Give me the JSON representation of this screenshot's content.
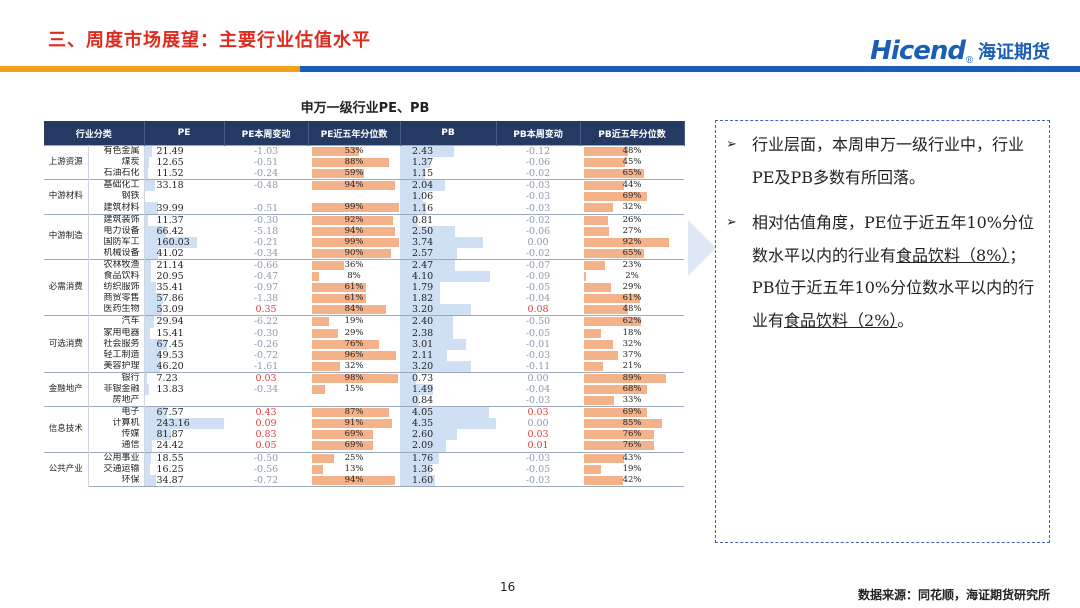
{
  "header": {
    "title": "三、周度市场展望：主要行业估值水平"
  },
  "logo": {
    "english": "Hicend",
    "registered": "®",
    "chinese": "海证期货"
  },
  "colors": {
    "title_red": "#e02a20",
    "brand_blue": "#1a5fb4",
    "stripe_orange": "#f4a11b",
    "stripe_blue": "#1a5fb4",
    "table_header": "#243a63",
    "bar_orange": "#f4b28a",
    "pe_bar_blue": "#cfe0f4"
  },
  "table": {
    "caption": "申万一级行业PE、PB",
    "columns": [
      "行业分类",
      "",
      "PE",
      "PE本周变动",
      "PE近五年分位数",
      "PB",
      "PB本周变动",
      "PB近五年分位数"
    ],
    "groups": [
      {
        "name": "上游资源",
        "rows": [
          {
            "industry": "有色金属",
            "pe": "21.49",
            "pe_chg": "-1.03",
            "pe_pct": "53%",
            "pe_pct_val": 53,
            "pb": "2.43",
            "pb_chg": "-0.12",
            "pb_pct": "48%",
            "pb_pct_val": 48
          },
          {
            "industry": "煤炭",
            "pe": "12.65",
            "pe_chg": "-0.51",
            "pe_pct": "88%",
            "pe_pct_val": 88,
            "pb": "1.37",
            "pb_chg": "-0.06",
            "pb_pct": "45%",
            "pb_pct_val": 45
          },
          {
            "industry": "石油石化",
            "pe": "11.52",
            "pe_chg": "-0.24",
            "pe_pct": "59%",
            "pe_pct_val": 59,
            "pb": "1.15",
            "pb_chg": "-0.02",
            "pb_pct": "65%",
            "pb_pct_val": 65
          }
        ]
      },
      {
        "name": "中游材料",
        "rows": [
          {
            "industry": "基础化工",
            "pe": "33.18",
            "pe_chg": "-0.48",
            "pe_pct": "94%",
            "pe_pct_val": 94,
            "pb": "2.04",
            "pb_chg": "-0.03",
            "pb_pct": "44%",
            "pb_pct_val": 44
          },
          {
            "industry": "钢铁",
            "pe": "",
            "pe_chg": "",
            "pe_pct": "",
            "pe_pct_val": 0,
            "pb": "1.06",
            "pb_chg": "-0.03",
            "pb_pct": "69%",
            "pb_pct_val": 69
          },
          {
            "industry": "建筑材料",
            "pe": "39.99",
            "pe_chg": "-0.51",
            "pe_pct": "99%",
            "pe_pct_val": 99,
            "pb": "1.16",
            "pb_chg": "-0.03",
            "pb_pct": "32%",
            "pb_pct_val": 32
          }
        ]
      },
      {
        "name": "中游制造",
        "rows": [
          {
            "industry": "建筑装饰",
            "pe": "11.37",
            "pe_chg": "-0.30",
            "pe_pct": "92%",
            "pe_pct_val": 92,
            "pb": "0.81",
            "pb_chg": "-0.02",
            "pb_pct": "26%",
            "pb_pct_val": 26
          },
          {
            "industry": "电力设备",
            "pe": "66.42",
            "pe_chg": "-5.18",
            "pe_pct": "94%",
            "pe_pct_val": 94,
            "pb": "2.50",
            "pb_chg": "-0.06",
            "pb_pct": "27%",
            "pb_pct_val": 27
          },
          {
            "industry": "国防军工",
            "pe": "160.03",
            "pe_chg": "-0.21",
            "pe_pct": "99%",
            "pe_pct_val": 99,
            "pb": "3.74",
            "pb_chg": "0.00",
            "pb_pct": "92%",
            "pb_pct_val": 92
          },
          {
            "industry": "机械设备",
            "pe": "41.02",
            "pe_chg": "-0.34",
            "pe_pct": "90%",
            "pe_pct_val": 90,
            "pb": "2.57",
            "pb_chg": "-0.02",
            "pb_pct": "65%",
            "pb_pct_val": 65
          }
        ]
      },
      {
        "name": "必需消费",
        "rows": [
          {
            "industry": "农林牧渔",
            "pe": "21.14",
            "pe_chg": "-0.66",
            "pe_pct": "36%",
            "pe_pct_val": 36,
            "pb": "2.47",
            "pb_chg": "-0.07",
            "pb_pct": "23%",
            "pb_pct_val": 23
          },
          {
            "industry": "食品饮料",
            "pe": "20.95",
            "pe_chg": "-0.47",
            "pe_pct": "8%",
            "pe_pct_val": 8,
            "pb": "4.10",
            "pb_chg": "-0.09",
            "pb_pct": "2%",
            "pb_pct_val": 2
          },
          {
            "industry": "纺织服饰",
            "pe": "35.41",
            "pe_chg": "-0.97",
            "pe_pct": "61%",
            "pe_pct_val": 61,
            "pb": "1.79",
            "pb_chg": "-0.05",
            "pb_pct": "29%",
            "pb_pct_val": 29
          },
          {
            "industry": "商贸零售",
            "pe": "57.86",
            "pe_chg": "-1.38",
            "pe_pct": "61%",
            "pe_pct_val": 61,
            "pb": "1.82",
            "pb_chg": "-0.04",
            "pb_pct": "61%",
            "pb_pct_val": 61
          },
          {
            "industry": "医药生物",
            "pe": "53.09",
            "pe_chg": "0.35",
            "pe_pct": "84%",
            "pe_pct_val": 84,
            "pb": "3.20",
            "pb_chg": "0.08",
            "pb_pct": "48%",
            "pb_pct_val": 48
          }
        ]
      },
      {
        "name": "可选消费",
        "rows": [
          {
            "industry": "汽车",
            "pe": "29.94",
            "pe_chg": "-6.22",
            "pe_pct": "19%",
            "pe_pct_val": 19,
            "pb": "2.40",
            "pb_chg": "-0.50",
            "pb_pct": "62%",
            "pb_pct_val": 62
          },
          {
            "industry": "家用电器",
            "pe": "15.41",
            "pe_chg": "-0.30",
            "pe_pct": "29%",
            "pe_pct_val": 29,
            "pb": "2.38",
            "pb_chg": "-0.05",
            "pb_pct": "18%",
            "pb_pct_val": 18
          },
          {
            "industry": "社会服务",
            "pe": "67.45",
            "pe_chg": "-0.26",
            "pe_pct": "76%",
            "pe_pct_val": 76,
            "pb": "3.01",
            "pb_chg": "-0.01",
            "pb_pct": "32%",
            "pb_pct_val": 32
          },
          {
            "industry": "轻工制造",
            "pe": "49.53",
            "pe_chg": "-0.72",
            "pe_pct": "96%",
            "pe_pct_val": 96,
            "pb": "2.11",
            "pb_chg": "-0.03",
            "pb_pct": "37%",
            "pb_pct_val": 37
          },
          {
            "industry": "美容护理",
            "pe": "46.20",
            "pe_chg": "-1.61",
            "pe_pct": "32%",
            "pe_pct_val": 32,
            "pb": "3.20",
            "pb_chg": "-0.11",
            "pb_pct": "21%",
            "pb_pct_val": 21
          }
        ]
      },
      {
        "name": "金融地产",
        "rows": [
          {
            "industry": "银行",
            "pe": "7.23",
            "pe_chg": "0.03",
            "pe_pct": "98%",
            "pe_pct_val": 98,
            "pb": "0.73",
            "pb_chg": "0.00",
            "pb_pct": "89%",
            "pb_pct_val": 89
          },
          {
            "industry": "非银金融",
            "pe": "13.83",
            "pe_chg": "-0.34",
            "pe_pct": "15%",
            "pe_pct_val": 15,
            "pb": "1.49",
            "pb_chg": "-0.04",
            "pb_pct": "68%",
            "pb_pct_val": 68
          },
          {
            "industry": "房地产",
            "pe": "",
            "pe_chg": "",
            "pe_pct": "",
            "pe_pct_val": 0,
            "pb": "0.84",
            "pb_chg": "-0.03",
            "pb_pct": "33%",
            "pb_pct_val": 33
          }
        ]
      },
      {
        "name": "信息技术",
        "rows": [
          {
            "industry": "电子",
            "pe": "67.57",
            "pe_chg": "0.43",
            "pe_pct": "87%",
            "pe_pct_val": 87,
            "pb": "4.05",
            "pb_chg": "0.03",
            "pb_pct": "69%",
            "pb_pct_val": 69
          },
          {
            "industry": "计算机",
            "pe": "243.16",
            "pe_chg": "0.09",
            "pe_pct": "91%",
            "pe_pct_val": 91,
            "pb": "4.35",
            "pb_chg": "0.00",
            "pb_pct": "85%",
            "pb_pct_val": 85
          },
          {
            "industry": "传媒",
            "pe": "81.87",
            "pe_chg": "0.83",
            "pe_pct": "69%",
            "pe_pct_val": 69,
            "pb": "2.60",
            "pb_chg": "0.03",
            "pb_pct": "76%",
            "pb_pct_val": 76
          },
          {
            "industry": "通信",
            "pe": "24.42",
            "pe_chg": "0.05",
            "pe_pct": "69%",
            "pe_pct_val": 69,
            "pb": "2.09",
            "pb_chg": "0.01",
            "pb_pct": "76%",
            "pb_pct_val": 76
          }
        ]
      },
      {
        "name": "公共产业",
        "rows": [
          {
            "industry": "公用事业",
            "pe": "18.55",
            "pe_chg": "-0.50",
            "pe_pct": "25%",
            "pe_pct_val": 25,
            "pb": "1.76",
            "pb_chg": "-0.03",
            "pb_pct": "43%",
            "pb_pct_val": 43
          },
          {
            "industry": "交通运输",
            "pe": "16.25",
            "pe_chg": "-0.56",
            "pe_pct": "13%",
            "pe_pct_val": 13,
            "pb": "1.36",
            "pb_chg": "-0.05",
            "pb_pct": "19%",
            "pb_pct_val": 19
          },
          {
            "industry": "环保",
            "pe": "34.87",
            "pe_chg": "-0.72",
            "pe_pct": "94%",
            "pe_pct_val": 94,
            "pb": "1.60",
            "pb_chg": "-0.03",
            "pb_pct": "42%",
            "pb_pct_val": 42
          }
        ]
      }
    ]
  },
  "notes": {
    "bullet_icon": "arrow-bullet-icon",
    "bullet_glyph": "➢",
    "b1": "行业层面，本周申万一级行业中，行业PE及PB多数有所回落。",
    "b2_a": "相对估值角度，PE位于近五年10%分位数水平以内的行业有",
    "b2_u1": "食品饮料（8%）",
    "b2_b": "；PB位于近五年10%分位数水平以内的行业有",
    "b2_u2": "食品饮料（2%）",
    "b2_c": "。"
  },
  "footer": {
    "page_number": "16",
    "source": "数据来源：同花顺，海证期货研究所"
  }
}
